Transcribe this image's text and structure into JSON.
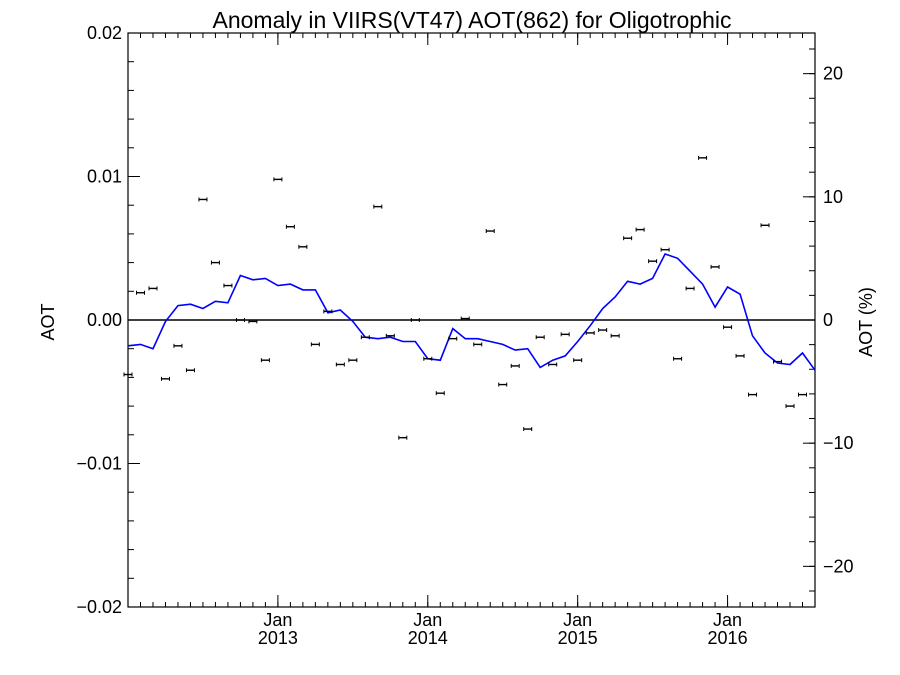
{
  "chart_data": {
    "type": "scatter",
    "title": "Anomaly in VIIRS(VT47) AOT(862) for Oligotrophic",
    "ylabel": "AOT",
    "y2label": "AOT (%)",
    "xlim": [
      "2012-01-01",
      "2016-08-01"
    ],
    "ylim": [
      -0.02,
      0.02
    ],
    "y2lim": [
      -23.3,
      23.3
    ],
    "zero_line": true,
    "x_ticks": [
      {
        "x": "2013-01",
        "label": "Jan",
        "year": "2013"
      },
      {
        "x": "2014-01",
        "label": "Jan",
        "year": "2014"
      },
      {
        "x": "2015-01",
        "label": "Jan",
        "year": "2015"
      },
      {
        "x": "2016-01",
        "label": "Jan",
        "year": "2016"
      }
    ],
    "y_ticks": [
      {
        "value": 0.02,
        "label": "0.02"
      },
      {
        "value": 0.01,
        "label": "0.01"
      },
      {
        "value": 0.0,
        "label": "0.00"
      },
      {
        "value": -0.01,
        "label": "−0.01"
      },
      {
        "value": -0.02,
        "label": "−0.02"
      }
    ],
    "y2_ticks": [
      {
        "value": 20,
        "label": "20"
      },
      {
        "value": 10,
        "label": "10"
      },
      {
        "value": 0,
        "label": "0"
      },
      {
        "value": -10,
        "label": "−10"
      },
      {
        "value": -20,
        "label": "−20"
      }
    ],
    "series": [
      {
        "kind": "monthly-markers",
        "color": "#000000",
        "points": [
          {
            "x": "2012-01",
            "y": -0.0038
          },
          {
            "x": "2012-02",
            "y": 0.0019
          },
          {
            "x": "2012-03",
            "y": 0.0022
          },
          {
            "x": "2012-04",
            "y": -0.0041
          },
          {
            "x": "2012-05",
            "y": -0.0018
          },
          {
            "x": "2012-06",
            "y": -0.0035
          },
          {
            "x": "2012-07",
            "y": 0.0084
          },
          {
            "x": "2012-08",
            "y": 0.004
          },
          {
            "x": "2012-09",
            "y": 0.0024
          },
          {
            "x": "2012-10",
            "y": 0.0
          },
          {
            "x": "2012-11",
            "y": -0.0001
          },
          {
            "x": "2012-12",
            "y": -0.0028
          },
          {
            "x": "2013-01",
            "y": 0.0098
          },
          {
            "x": "2013-02",
            "y": 0.0065
          },
          {
            "x": "2013-03",
            "y": 0.0051
          },
          {
            "x": "2013-04",
            "y": -0.0017
          },
          {
            "x": "2013-05",
            "y": 0.0006
          },
          {
            "x": "2013-06",
            "y": -0.0031
          },
          {
            "x": "2013-07",
            "y": -0.0028
          },
          {
            "x": "2013-08",
            "y": -0.0012
          },
          {
            "x": "2013-09",
            "y": 0.0079
          },
          {
            "x": "2013-10",
            "y": -0.0011
          },
          {
            "x": "2013-11",
            "y": -0.0082
          },
          {
            "x": "2013-12",
            "y": 0.0
          },
          {
            "x": "2014-01",
            "y": -0.0027
          },
          {
            "x": "2014-02",
            "y": -0.0051
          },
          {
            "x": "2014-03",
            "y": -0.0013
          },
          {
            "x": "2014-04",
            "y": 0.0001
          },
          {
            "x": "2014-05",
            "y": -0.0017
          },
          {
            "x": "2014-06",
            "y": 0.0062
          },
          {
            "x": "2014-07",
            "y": -0.0045
          },
          {
            "x": "2014-08",
            "y": -0.0032
          },
          {
            "x": "2014-09",
            "y": -0.0076
          },
          {
            "x": "2014-10",
            "y": -0.0012
          },
          {
            "x": "2014-11",
            "y": -0.0031
          },
          {
            "x": "2014-12",
            "y": -0.001
          },
          {
            "x": "2015-01",
            "y": -0.0028
          },
          {
            "x": "2015-02",
            "y": -0.0009
          },
          {
            "x": "2015-03",
            "y": -0.0007
          },
          {
            "x": "2015-04",
            "y": -0.0011
          },
          {
            "x": "2015-05",
            "y": 0.0057
          },
          {
            "x": "2015-06",
            "y": 0.0063
          },
          {
            "x": "2015-07",
            "y": 0.0041
          },
          {
            "x": "2015-08",
            "y": 0.0049
          },
          {
            "x": "2015-09",
            "y": -0.0027
          },
          {
            "x": "2015-10",
            "y": 0.0022
          },
          {
            "x": "2015-11",
            "y": 0.0113
          },
          {
            "x": "2015-12",
            "y": 0.0037
          },
          {
            "x": "2016-01",
            "y": -0.0005
          },
          {
            "x": "2016-02",
            "y": -0.0025
          },
          {
            "x": "2016-03",
            "y": -0.0052
          },
          {
            "x": "2016-04",
            "y": 0.0066
          },
          {
            "x": "2016-05",
            "y": -0.0029
          },
          {
            "x": "2016-06",
            "y": -0.006
          },
          {
            "x": "2016-07",
            "y": -0.0052
          }
        ]
      },
      {
        "kind": "running-mean-line",
        "color": "#0000ff",
        "points": [
          {
            "x": "2012-01",
            "y": -0.0018
          },
          {
            "x": "2012-02",
            "y": -0.0017
          },
          {
            "x": "2012-03",
            "y": -0.002
          },
          {
            "x": "2012-04",
            "y": -0.0001
          },
          {
            "x": "2012-05",
            "y": 0.001
          },
          {
            "x": "2012-06",
            "y": 0.0011
          },
          {
            "x": "2012-07",
            "y": 0.0008
          },
          {
            "x": "2012-08",
            "y": 0.0013
          },
          {
            "x": "2012-09",
            "y": 0.0012
          },
          {
            "x": "2012-10",
            "y": 0.0031
          },
          {
            "x": "2012-11",
            "y": 0.0028
          },
          {
            "x": "2012-12",
            "y": 0.0029
          },
          {
            "x": "2013-01",
            "y": 0.0024
          },
          {
            "x": "2013-02",
            "y": 0.0025
          },
          {
            "x": "2013-03",
            "y": 0.0021
          },
          {
            "x": "2013-04",
            "y": 0.0021
          },
          {
            "x": "2013-05",
            "y": 0.0005
          },
          {
            "x": "2013-06",
            "y": 0.0007
          },
          {
            "x": "2013-07",
            "y": -0.0001
          },
          {
            "x": "2013-08",
            "y": -0.0012
          },
          {
            "x": "2013-09",
            "y": -0.0013
          },
          {
            "x": "2013-10",
            "y": -0.0012
          },
          {
            "x": "2013-11",
            "y": -0.0015
          },
          {
            "x": "2013-12",
            "y": -0.0015
          },
          {
            "x": "2014-01",
            "y": -0.0027
          },
          {
            "x": "2014-02",
            "y": -0.0028
          },
          {
            "x": "2014-03",
            "y": -0.0006
          },
          {
            "x": "2014-04",
            "y": -0.0013
          },
          {
            "x": "2014-05",
            "y": -0.0013
          },
          {
            "x": "2014-06",
            "y": -0.0015
          },
          {
            "x": "2014-07",
            "y": -0.0017
          },
          {
            "x": "2014-08",
            "y": -0.0021
          },
          {
            "x": "2014-09",
            "y": -0.002
          },
          {
            "x": "2014-10",
            "y": -0.0033
          },
          {
            "x": "2014-11",
            "y": -0.0028
          },
          {
            "x": "2014-12",
            "y": -0.0025
          },
          {
            "x": "2015-01",
            "y": -0.0015
          },
          {
            "x": "2015-02",
            "y": -0.0004
          },
          {
            "x": "2015-03",
            "y": 0.0008
          },
          {
            "x": "2015-04",
            "y": 0.0016
          },
          {
            "x": "2015-05",
            "y": 0.0027
          },
          {
            "x": "2015-06",
            "y": 0.0025
          },
          {
            "x": "2015-07",
            "y": 0.0029
          },
          {
            "x": "2015-08",
            "y": 0.0046
          },
          {
            "x": "2015-09",
            "y": 0.0043
          },
          {
            "x": "2015-10",
            "y": 0.0034
          },
          {
            "x": "2015-11",
            "y": 0.0025
          },
          {
            "x": "2015-12",
            "y": 0.0009
          },
          {
            "x": "2016-01",
            "y": 0.0023
          },
          {
            "x": "2016-02",
            "y": 0.0018
          },
          {
            "x": "2016-03",
            "y": -0.0011
          },
          {
            "x": "2016-04",
            "y": -0.0023
          },
          {
            "x": "2016-05",
            "y": -0.003
          },
          {
            "x": "2016-06",
            "y": -0.0031
          },
          {
            "x": "2016-07",
            "y": -0.0023
          },
          {
            "x": "2016-08",
            "y": -0.0035
          }
        ]
      }
    ]
  }
}
